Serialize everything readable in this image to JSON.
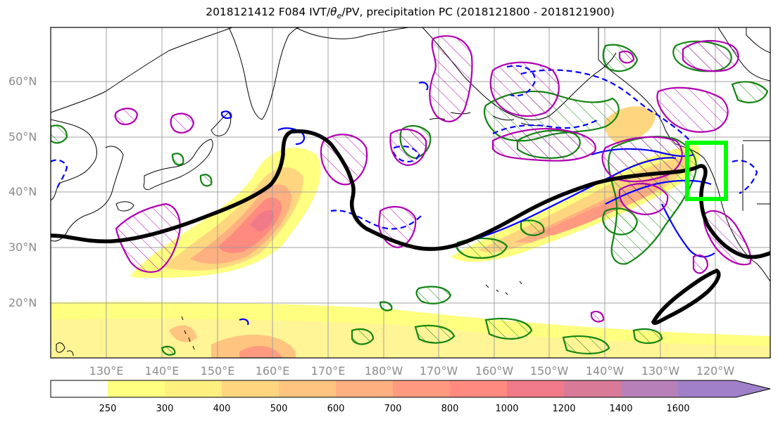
{
  "title": {
    "prefix": "2018121412 F084 IVT/",
    "theta_symbol": "θ",
    "theta_sub": "e",
    "suffix": "/PV, precipitation PC (2018121800 - 2018121900)"
  },
  "map": {
    "latitude_labels": [
      "60°N",
      "50°N",
      "40°N",
      "30°N",
      "20°N"
    ],
    "longitude_labels": [
      "130°E",
      "140°E",
      "150°E",
      "160°E",
      "170°E",
      "180°W",
      "170°W",
      "160°W",
      "150°W",
      "140°W",
      "130°W",
      "120°W"
    ],
    "gridlines": true,
    "target_box_color": "#00ff00",
    "contour_colors": {
      "precip_pc": "#138413",
      "theta_e": "#0000ff",
      "pv_hatched": "#b000b0",
      "jet_axis": "#000000"
    }
  },
  "colorbar": {
    "ticks": [
      "250",
      "300",
      "400",
      "500",
      "600",
      "700",
      "800",
      "1000",
      "1200",
      "1400",
      "1600"
    ],
    "colors": [
      "#ffffff",
      "#ffff80",
      "#fff080",
      "#ffd680",
      "#ffc480",
      "#ffb080",
      "#ff9a80",
      "#ff8a80",
      "#f07a88",
      "#d87a98",
      "#b880b8",
      "#a080c8"
    ]
  }
}
